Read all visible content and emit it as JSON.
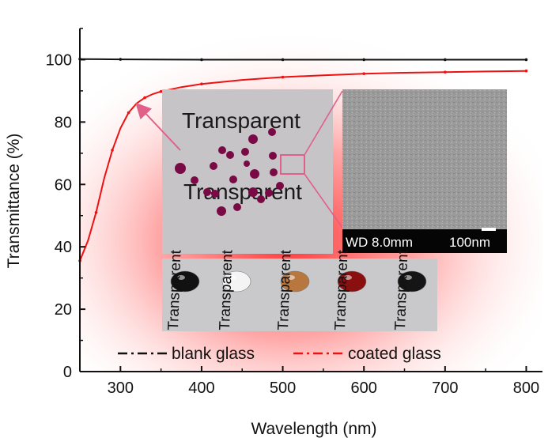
{
  "chart_data": {
    "type": "line",
    "xlabel": "Wavelength (nm)",
    "ylabel": "Transmittance (%)",
    "xlim": [
      250,
      820
    ],
    "ylim": [
      0,
      110
    ],
    "x_ticks": [
      300,
      400,
      500,
      600,
      700,
      800
    ],
    "y_ticks": [
      0,
      20,
      40,
      60,
      80,
      100
    ],
    "grid": false,
    "legend_position": "bottom",
    "series": [
      {
        "name": "blank glass",
        "color": "#111111",
        "style": "dash-dot",
        "x": [
          250,
          300,
          400,
          500,
          600,
          700,
          800
        ],
        "y": [
          100.2,
          100.1,
          100.0,
          100.0,
          100.0,
          100.0,
          100.0
        ]
      },
      {
        "name": "coated glass",
        "color": "#ee1111",
        "style": "dash-dot",
        "x": [
          250,
          260,
          270,
          280,
          290,
          300,
          310,
          320,
          330,
          340,
          350,
          375,
          400,
          450,
          500,
          550,
          600,
          650,
          700,
          750,
          800
        ],
        "y": [
          35.5,
          42.0,
          51.0,
          62.0,
          71.0,
          78.0,
          83.0,
          86.0,
          87.8,
          89.0,
          89.8,
          91.2,
          92.2,
          93.5,
          94.4,
          95.0,
          95.5,
          95.8,
          96.0,
          96.2,
          96.4
        ]
      }
    ]
  },
  "inset": {
    "photo_top_text_1": "Transparent",
    "photo_top_text_2": "Transparent",
    "sem_wd_label": "WD 8.0mm",
    "sem_scale_label": "100nm",
    "droplet_label": "Transparent",
    "droplet_colors": [
      "#111111",
      "#f4f4f4",
      "#b8773f",
      "#8a1010",
      "#151515"
    ]
  }
}
